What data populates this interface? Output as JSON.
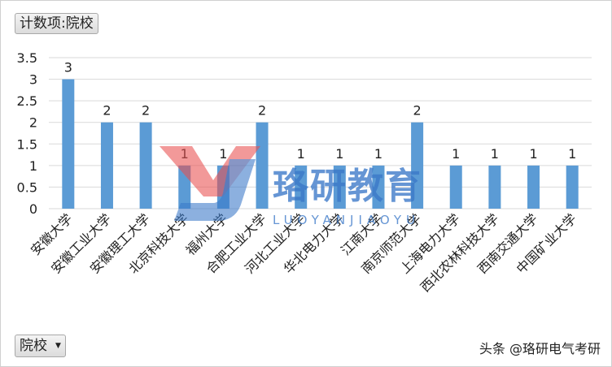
{
  "pivot": {
    "value_field": "计数项:院校",
    "filter_field": "院校"
  },
  "watermark": {
    "text": "珞研教育",
    "subtext": "LUOYANJIAOYU"
  },
  "credit": "头条 @珞研电气考研",
  "colors": {
    "bar": "#5b9bd5",
    "grid": "#d9d9d9",
    "watermark_red": "#e85050",
    "watermark_blue": "#3a78c8"
  },
  "chart_data": {
    "type": "bar",
    "categories": [
      "安徽大学",
      "安徽工业大学",
      "安徽理工大学",
      "北京科技大学",
      "福州大学",
      "合肥工业大学",
      "河北工业大学",
      "华北电力大学",
      "江南大学",
      "南京师范大学",
      "上海电力大学",
      "西北农林科技大学",
      "西南交通大学",
      "中国矿业大学"
    ],
    "values": [
      3,
      2,
      2,
      1,
      1,
      2,
      1,
      1,
      1,
      2,
      1,
      1,
      1,
      1
    ],
    "ylim": [
      0,
      3.5
    ],
    "yticks": [
      "0",
      "0.5",
      "1",
      "1.5",
      "2",
      "2.5",
      "3",
      "3.5"
    ],
    "grid": true,
    "data_labels": true
  }
}
